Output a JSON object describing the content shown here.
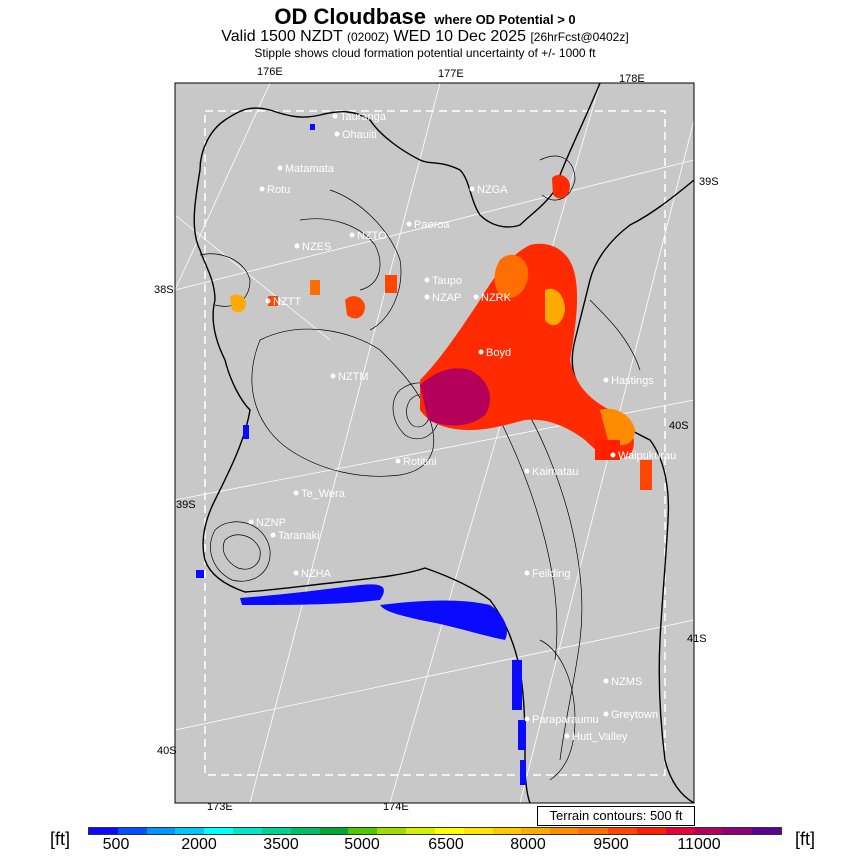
{
  "header": {
    "title": "OD Cloudbase",
    "title_suffix": "where OD Potential > 0",
    "valid_main": "Valid 1500 NZDT",
    "valid_zone": "(0200Z)",
    "valid_date": "WED 10 Dec 2025",
    "valid_fcst": "[26hrFcst@0402z]",
    "stipple_note": "Stipple shows cloud formation potential uncertainty of +/- 1000 ft"
  },
  "map": {
    "background_color": "#c8c8c8",
    "longitude_labels": [
      "176E",
      "177E",
      "178E",
      "173E",
      "174E"
    ],
    "latitude_labels": [
      "39S",
      "38S",
      "40S",
      "39S",
      "41S",
      "40S"
    ],
    "places": [
      {
        "name": "Tauranga"
      },
      {
        "name": "Ohauiti"
      },
      {
        "name": "Matamata"
      },
      {
        "name": "Rotu"
      },
      {
        "name": "NZGA"
      },
      {
        "name": "Paeroa"
      },
      {
        "name": "NZTO"
      },
      {
        "name": "NZES"
      },
      {
        "name": "Taupo"
      },
      {
        "name": "NZAP"
      },
      {
        "name": "NZRK"
      },
      {
        "name": "NZTT"
      },
      {
        "name": "Boyd"
      },
      {
        "name": "NZTM"
      },
      {
        "name": "Hastings"
      },
      {
        "name": "Waipukurau"
      },
      {
        "name": "Rotitini"
      },
      {
        "name": "Kaimatau"
      },
      {
        "name": "Te_Wera"
      },
      {
        "name": "NZNP"
      },
      {
        "name": "Taranaki"
      },
      {
        "name": "NZHA"
      },
      {
        "name": "Feilding"
      },
      {
        "name": "NZMS"
      },
      {
        "name": "Greytown"
      },
      {
        "name": "Paraparaumu"
      },
      {
        "name": "Hutt_Valley"
      }
    ]
  },
  "legend": {
    "terrain_note": "Terrain contours: 500 ft",
    "unit_left": "[ft]",
    "unit_right": "[ft]",
    "ticks": [
      "500",
      "2000",
      "3500",
      "5000",
      "6500",
      "8000",
      "9500",
      "11000"
    ],
    "colors": [
      "#0a0aff",
      "#0050ff",
      "#0096ff",
      "#00c8ff",
      "#00ffff",
      "#00e6c8",
      "#00d296",
      "#00be64",
      "#00aa32",
      "#50c800",
      "#a0dc00",
      "#d2f000",
      "#ffff00",
      "#ffe600",
      "#ffc800",
      "#ffaa00",
      "#ff8c00",
      "#ff6e00",
      "#ff4600",
      "#ff1e00",
      "#e6003c",
      "#b4005a",
      "#8c0078",
      "#5a0096"
    ]
  }
}
